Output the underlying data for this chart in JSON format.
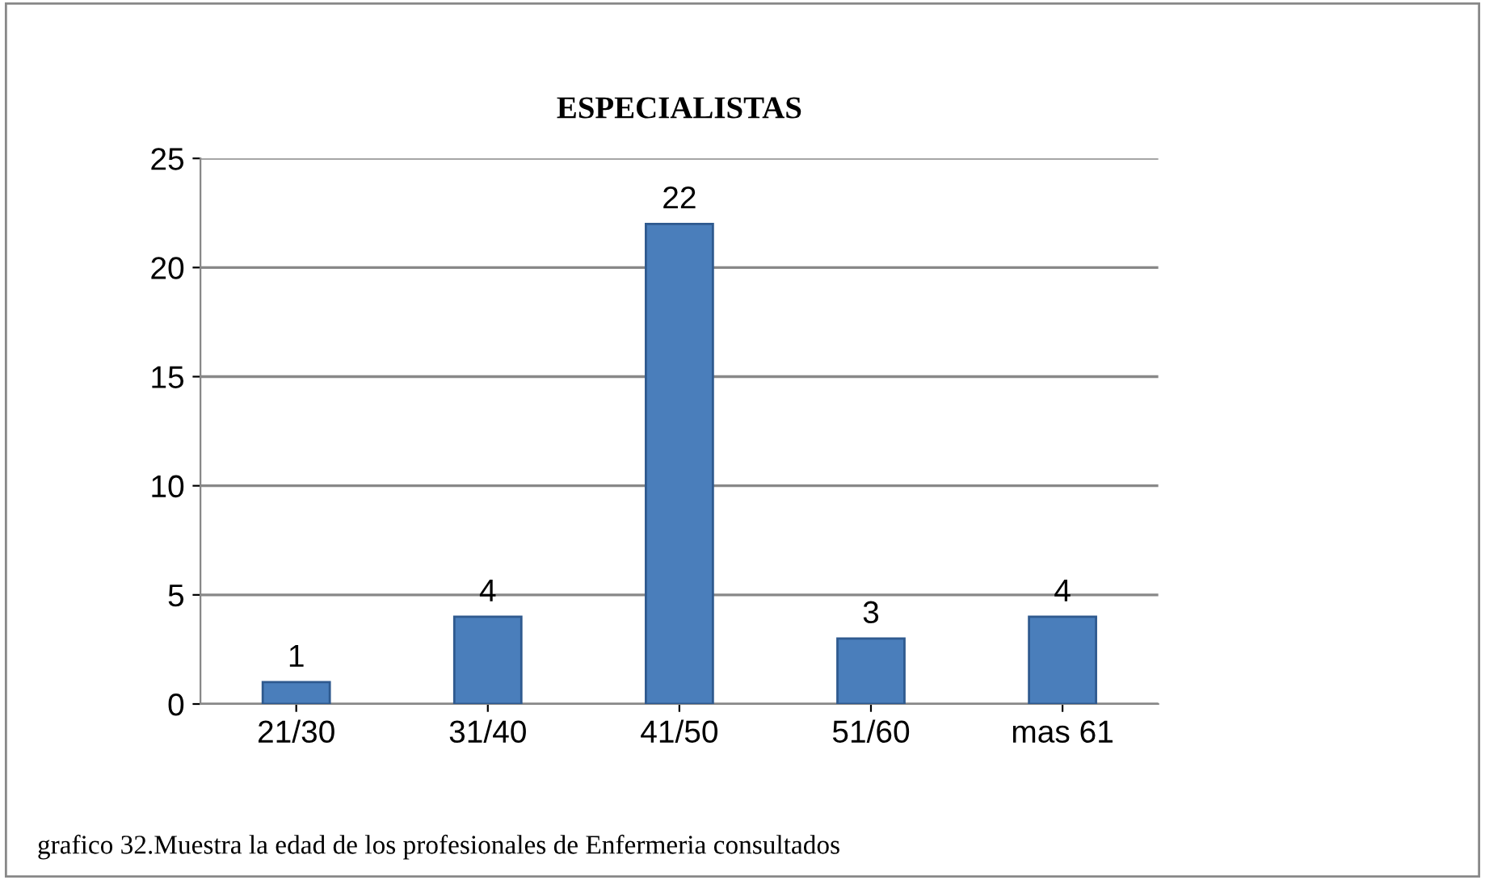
{
  "chart_data": {
    "type": "bar",
    "title": "ESPECIALISTAS",
    "categories": [
      "21/30",
      "31/40",
      "41/50",
      "51/60",
      "mas 61"
    ],
    "values": [
      1,
      4,
      22,
      3,
      4
    ],
    "color": "#4a7ebb",
    "ylim": [
      0,
      25
    ],
    "yticks": [
      0,
      5,
      10,
      15,
      20,
      25
    ],
    "grid": "y",
    "data_labels": true,
    "legend": false,
    "annotations": [
      "grafico 32.Muestra la edad de los profesionales de Enfermeria consultados"
    ]
  }
}
